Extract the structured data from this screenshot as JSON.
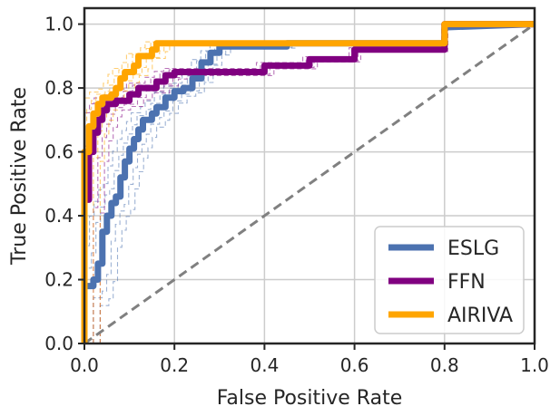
{
  "chart_data": {
    "type": "line",
    "xlabel": "False Positive Rate",
    "ylabel": "True Positive Rate",
    "xlim": [
      0,
      1
    ],
    "ylim": [
      0,
      1.05
    ],
    "xticks": [
      "0.0",
      "0.2",
      "0.4",
      "0.6",
      "0.8",
      "1.0"
    ],
    "yticks": [
      "0.0",
      "0.2",
      "0.4",
      "0.6",
      "0.8",
      "1.0"
    ],
    "grid": true,
    "legend_position": "bottom-right",
    "diagonal_reference": true,
    "series": [
      {
        "name": "ESLG",
        "color": "#4c72b0",
        "points": [
          [
            0,
            0
          ],
          [
            0,
            0.18
          ],
          [
            0.02,
            0.18
          ],
          [
            0.02,
            0.2
          ],
          [
            0.03,
            0.2
          ],
          [
            0.03,
            0.25
          ],
          [
            0.04,
            0.25
          ],
          [
            0.04,
            0.35
          ],
          [
            0.05,
            0.35
          ],
          [
            0.05,
            0.4
          ],
          [
            0.06,
            0.4
          ],
          [
            0.06,
            0.44
          ],
          [
            0.07,
            0.44
          ],
          [
            0.07,
            0.46
          ],
          [
            0.08,
            0.46
          ],
          [
            0.08,
            0.52
          ],
          [
            0.09,
            0.52
          ],
          [
            0.09,
            0.57
          ],
          [
            0.1,
            0.57
          ],
          [
            0.1,
            0.61
          ],
          [
            0.11,
            0.61
          ],
          [
            0.11,
            0.64
          ],
          [
            0.12,
            0.64
          ],
          [
            0.12,
            0.67
          ],
          [
            0.13,
            0.67
          ],
          [
            0.13,
            0.7
          ],
          [
            0.15,
            0.7
          ],
          [
            0.15,
            0.72
          ],
          [
            0.16,
            0.72
          ],
          [
            0.16,
            0.74
          ],
          [
            0.18,
            0.74
          ],
          [
            0.18,
            0.77
          ],
          [
            0.2,
            0.77
          ],
          [
            0.2,
            0.79
          ],
          [
            0.22,
            0.79
          ],
          [
            0.22,
            0.8
          ],
          [
            0.24,
            0.8
          ],
          [
            0.24,
            0.83
          ],
          [
            0.26,
            0.83
          ],
          [
            0.26,
            0.88
          ],
          [
            0.28,
            0.88
          ],
          [
            0.28,
            0.91
          ],
          [
            0.3,
            0.91
          ],
          [
            0.3,
            0.93
          ],
          [
            0.45,
            0.93
          ],
          [
            0.45,
            0.94
          ],
          [
            0.8,
            0.94
          ],
          [
            0.8,
            0.99
          ],
          [
            1,
            1
          ]
        ]
      },
      {
        "name": "FFN",
        "color": "#800080",
        "points": [
          [
            0,
            0
          ],
          [
            0,
            0.45
          ],
          [
            0.01,
            0.45
          ],
          [
            0.01,
            0.6
          ],
          [
            0.02,
            0.6
          ],
          [
            0.02,
            0.66
          ],
          [
            0.03,
            0.66
          ],
          [
            0.03,
            0.7
          ],
          [
            0.04,
            0.7
          ],
          [
            0.04,
            0.73
          ],
          [
            0.05,
            0.73
          ],
          [
            0.05,
            0.75
          ],
          [
            0.07,
            0.75
          ],
          [
            0.07,
            0.76
          ],
          [
            0.1,
            0.76
          ],
          [
            0.1,
            0.78
          ],
          [
            0.12,
            0.78
          ],
          [
            0.12,
            0.8
          ],
          [
            0.16,
            0.8
          ],
          [
            0.16,
            0.82
          ],
          [
            0.18,
            0.82
          ],
          [
            0.18,
            0.84
          ],
          [
            0.2,
            0.84
          ],
          [
            0.2,
            0.85
          ],
          [
            0.4,
            0.85
          ],
          [
            0.4,
            0.87
          ],
          [
            0.5,
            0.87
          ],
          [
            0.5,
            0.89
          ],
          [
            0.6,
            0.89
          ],
          [
            0.6,
            0.92
          ],
          [
            0.8,
            0.92
          ],
          [
            0.8,
            1.0
          ],
          [
            1,
            1
          ]
        ]
      },
      {
        "name": "AIRIVA",
        "color": "#ffa500",
        "points": [
          [
            0,
            0
          ],
          [
            0,
            0.6
          ],
          [
            0.01,
            0.6
          ],
          [
            0.01,
            0.68
          ],
          [
            0.02,
            0.68
          ],
          [
            0.02,
            0.72
          ],
          [
            0.03,
            0.72
          ],
          [
            0.03,
            0.75
          ],
          [
            0.04,
            0.75
          ],
          [
            0.04,
            0.77
          ],
          [
            0.06,
            0.77
          ],
          [
            0.06,
            0.78
          ],
          [
            0.07,
            0.78
          ],
          [
            0.07,
            0.8
          ],
          [
            0.08,
            0.8
          ],
          [
            0.08,
            0.83
          ],
          [
            0.09,
            0.83
          ],
          [
            0.09,
            0.85
          ],
          [
            0.11,
            0.85
          ],
          [
            0.11,
            0.87
          ],
          [
            0.12,
            0.87
          ],
          [
            0.12,
            0.9
          ],
          [
            0.15,
            0.9
          ],
          [
            0.15,
            0.92
          ],
          [
            0.16,
            0.92
          ],
          [
            0.16,
            0.94
          ],
          [
            0.8,
            0.94
          ],
          [
            0.8,
            1.0
          ],
          [
            1,
            1
          ]
        ]
      }
    ]
  }
}
